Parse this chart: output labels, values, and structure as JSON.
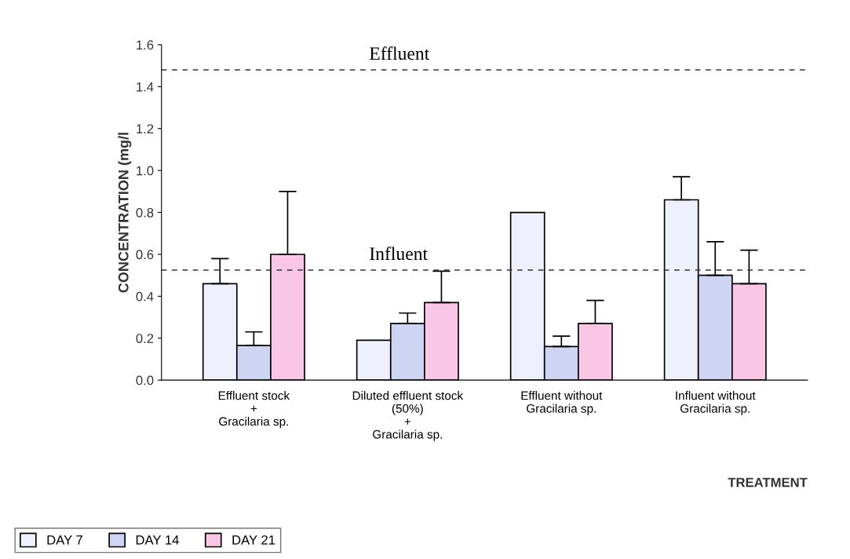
{
  "chart_data": {
    "type": "bar",
    "xlabel": "TREATMENT",
    "ylabel": "CONCENTRATION (mg/l",
    "categories": [
      "Effluent stock\n+\nGracilaria sp.",
      "Diluted effluent stock\n(50%)\n+\nGracilaria sp.",
      "Effluent without\nGracilaria sp.",
      "Influent without\nGracilaria sp."
    ],
    "series": [
      {
        "name": "DAY 7",
        "color": "#eef1fd",
        "values": [
          0.46,
          0.19,
          0.8,
          0.86
        ],
        "errors": [
          0.12,
          null,
          null,
          0.11
        ]
      },
      {
        "name": "DAY 14",
        "color": "#cdd5f3",
        "values": [
          0.165,
          0.27,
          0.16,
          0.5
        ],
        "errors": [
          0.065,
          0.05,
          0.05,
          0.16
        ]
      },
      {
        "name": "DAY 21",
        "color": "#f9c6e6",
        "values": [
          0.6,
          0.37,
          0.27,
          0.46
        ],
        "errors": [
          0.3,
          0.15,
          0.11,
          0.16
        ]
      }
    ],
    "ylim": [
      0,
      1.6
    ],
    "yticks": [
      {
        "value": 0,
        "label": "0.0"
      },
      {
        "value": 0.2,
        "label": "0.2"
      },
      {
        "value": 0.4,
        "label": "0.4"
      },
      {
        "value": 0.6,
        "label": "0.6"
      },
      {
        "value": 0.8,
        "label": "0.8"
      },
      {
        "value": 1.0,
        "label": "1.0"
      },
      {
        "value": 1.2,
        "label": "1.2"
      },
      {
        "value": 1.4,
        "label": "1.4"
      },
      {
        "value": 1.6,
        "label": "1.6"
      }
    ],
    "ref_lines": [
      {
        "axis": "y",
        "value": 1.48,
        "label": "Effluent",
        "line_style": "dashed",
        "color": "#333333"
      },
      {
        "axis": "y",
        "value": 0.525,
        "label": "Influent",
        "line_style": "dashed",
        "color": "#333333"
      }
    ],
    "grid": false,
    "legend": "bottom left"
  }
}
